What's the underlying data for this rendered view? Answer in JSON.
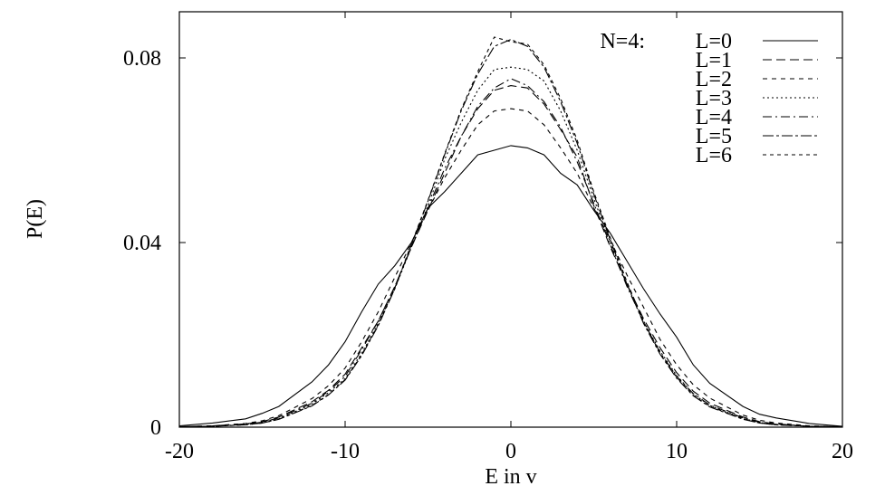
{
  "chart_data": {
    "type": "line",
    "title": "",
    "xlabel": "E in v",
    "ylabel": "P(E)",
    "xlim": [
      -20,
      20
    ],
    "ylim": [
      0,
      0.09
    ],
    "x_ticks": [
      {
        "value": -20,
        "label": "-20"
      },
      {
        "value": -10,
        "label": "-10"
      },
      {
        "value": 0,
        "label": "0"
      },
      {
        "value": 10,
        "label": "10"
      },
      {
        "value": 20,
        "label": "20"
      }
    ],
    "y_ticks": [
      {
        "value": 0,
        "label": "0"
      },
      {
        "value": 0.04,
        "label": "0.04"
      },
      {
        "value": 0.08,
        "label": "0.08"
      }
    ],
    "grid": false,
    "legend_position": "top-right",
    "legend_prefix": "N=4:",
    "x": [
      -20,
      -18,
      -16,
      -15,
      -14,
      -12,
      -11,
      -10,
      -9,
      -8,
      -7,
      -6,
      -5,
      -4,
      -3,
      -2,
      -1,
      0,
      1,
      2,
      3,
      4,
      5,
      6,
      7,
      8,
      9,
      10,
      11,
      12,
      14,
      15,
      16,
      18,
      20
    ],
    "series": [
      {
        "name": "L=0",
        "dash": "",
        "values": [
          0.0003,
          0.0009,
          0.0018,
          0.003,
          0.0045,
          0.0098,
          0.0135,
          0.0185,
          0.025,
          0.031,
          0.035,
          0.04,
          0.0475,
          0.051,
          0.055,
          0.059,
          0.06,
          0.061,
          0.0605,
          0.059,
          0.055,
          0.0525,
          0.047,
          0.042,
          0.036,
          0.03,
          0.0245,
          0.0195,
          0.0135,
          0.0095,
          0.0045,
          0.0028,
          0.002,
          0.0008,
          0.0002
        ]
      },
      {
        "name": "L=1",
        "dash": "10,5",
        "values": [
          0.0001,
          0.0003,
          0.0007,
          0.0012,
          0.0022,
          0.0055,
          0.008,
          0.0115,
          0.0172,
          0.023,
          0.0305,
          0.039,
          0.047,
          0.055,
          0.063,
          0.069,
          0.073,
          0.074,
          0.0735,
          0.07,
          0.0645,
          0.0585,
          0.048,
          0.039,
          0.031,
          0.0235,
          0.0172,
          0.0118,
          0.0078,
          0.0052,
          0.0022,
          0.0012,
          0.0007,
          0.0002,
          0.0001
        ]
      },
      {
        "name": "L=2",
        "dash": "5,5",
        "values": [
          0.0001,
          0.0003,
          0.0008,
          0.0014,
          0.0025,
          0.0062,
          0.009,
          0.0128,
          0.0185,
          0.025,
          0.0325,
          0.04,
          0.047,
          0.054,
          0.06,
          0.0655,
          0.0685,
          0.069,
          0.0685,
          0.0655,
          0.0605,
          0.055,
          0.0475,
          0.0405,
          0.033,
          0.026,
          0.019,
          0.0135,
          0.0092,
          0.0063,
          0.0026,
          0.0015,
          0.0009,
          0.0003,
          0.0001
        ]
      },
      {
        "name": "L=3",
        "dash": "2,3",
        "values": [
          0.0001,
          0.0002,
          0.0006,
          0.001,
          0.0018,
          0.005,
          0.0075,
          0.0105,
          0.016,
          0.0225,
          0.03,
          0.039,
          0.048,
          0.058,
          0.066,
          0.073,
          0.0775,
          0.078,
          0.0775,
          0.075,
          0.0685,
          0.06,
          0.0495,
          0.04,
          0.031,
          0.023,
          0.0165,
          0.0112,
          0.0072,
          0.0047,
          0.0019,
          0.001,
          0.0006,
          0.0002,
          0.0001
        ]
      },
      {
        "name": "L=4",
        "dash": "10,4,2,4",
        "values": [
          0.0001,
          0.0002,
          0.0006,
          0.0011,
          0.002,
          0.0052,
          0.0078,
          0.011,
          0.0168,
          0.023,
          0.0305,
          0.039,
          0.0475,
          0.056,
          0.063,
          0.0695,
          0.0735,
          0.0755,
          0.074,
          0.0705,
          0.065,
          0.0575,
          0.0485,
          0.0395,
          0.0305,
          0.0228,
          0.0162,
          0.011,
          0.0073,
          0.0048,
          0.002,
          0.0011,
          0.0006,
          0.0002,
          0.0001
        ]
      },
      {
        "name": "L=5",
        "dash": "12,3,3,3",
        "values": [
          0.0001,
          0.0002,
          0.0005,
          0.0009,
          0.0017,
          0.0046,
          0.007,
          0.0102,
          0.0155,
          0.022,
          0.03,
          0.0395,
          0.049,
          0.059,
          0.0685,
          0.0765,
          0.0825,
          0.084,
          0.0825,
          0.078,
          0.0705,
          0.0615,
          0.0505,
          0.0405,
          0.031,
          0.0225,
          0.0158,
          0.0106,
          0.0068,
          0.0044,
          0.0017,
          0.0009,
          0.0005,
          0.0002,
          0.0001
        ]
      },
      {
        "name": "L=6",
        "dash": "4,4",
        "values": [
          0.0001,
          0.0002,
          0.0005,
          0.0009,
          0.0017,
          0.0047,
          0.0071,
          0.0103,
          0.0157,
          0.0222,
          0.0302,
          0.0397,
          0.0492,
          0.0592,
          0.0688,
          0.077,
          0.0845,
          0.0835,
          0.083,
          0.0785,
          0.0712,
          0.0622,
          0.051,
          0.041,
          0.0315,
          0.0229,
          0.016,
          0.0108,
          0.0069,
          0.0045,
          0.0018,
          0.0009,
          0.0005,
          0.0002,
          0.0001
        ]
      }
    ]
  }
}
